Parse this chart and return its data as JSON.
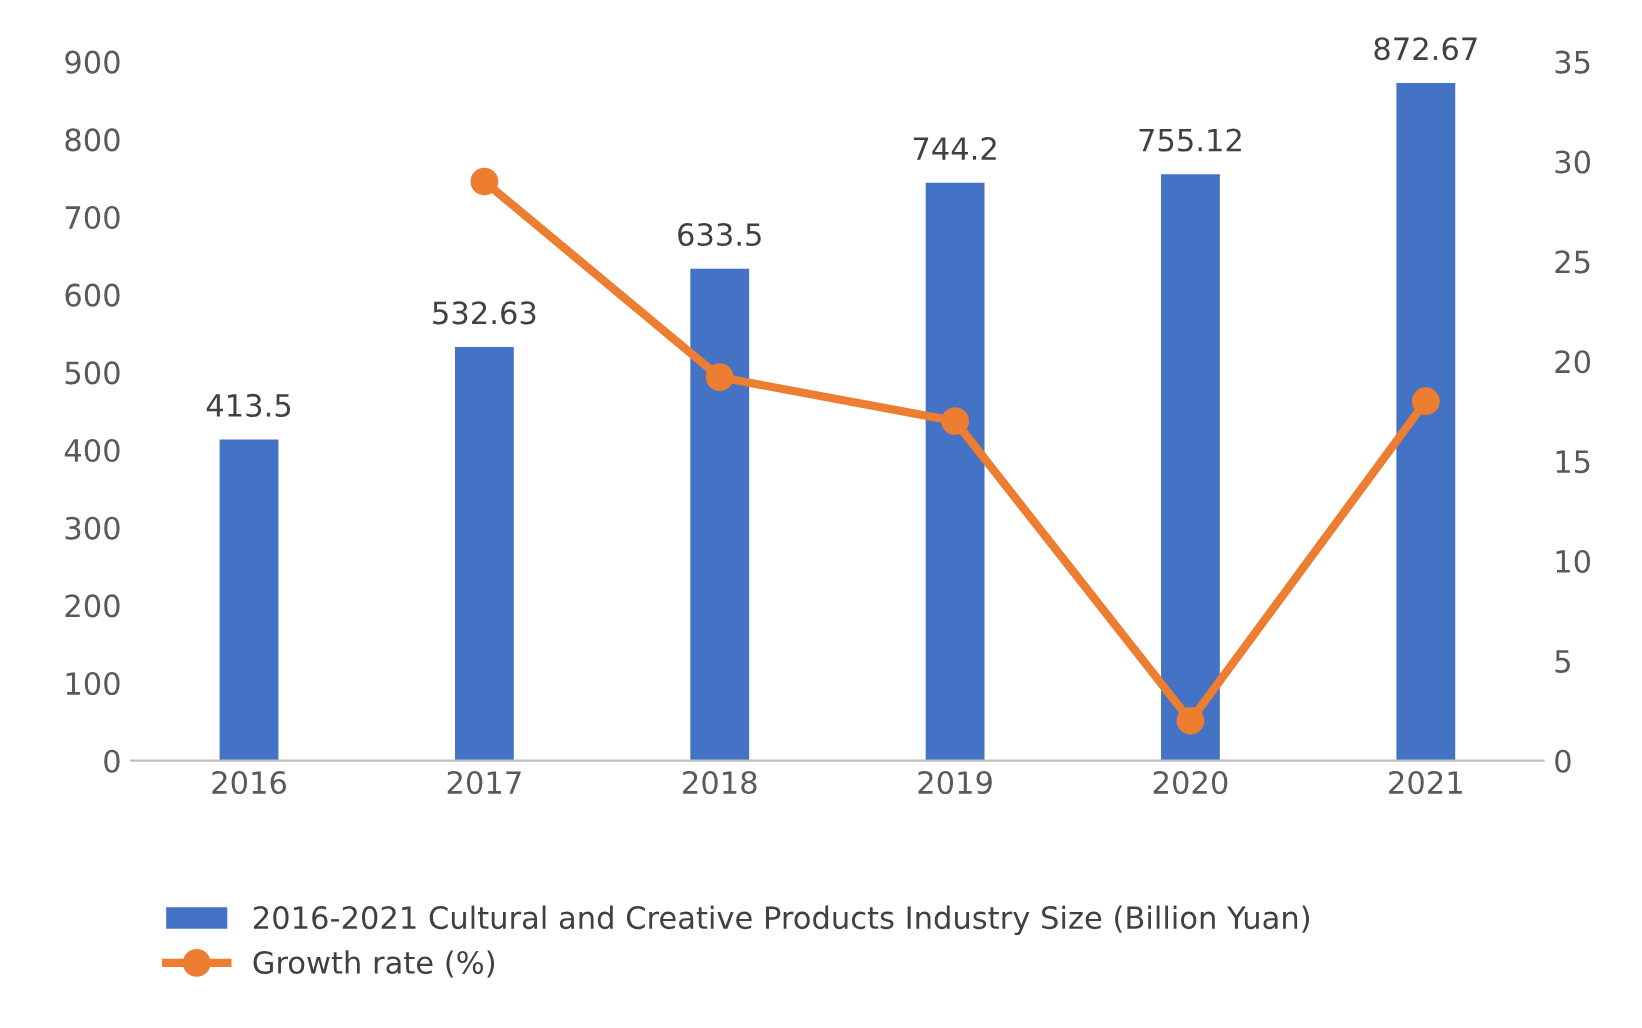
{
  "chart_data": {
    "type": "bar",
    "categories": [
      "2016",
      "2017",
      "2018",
      "2019",
      "2020",
      "2021"
    ],
    "series": [
      {
        "name": "2016-2021 Cultural and Creative Products Industry Size (Billion Yuan)",
        "color": "#4472c4",
        "values": [
          413.5,
          532.63,
          633.5,
          744.2,
          755.12,
          872.67
        ],
        "value_labels": [
          "413.5",
          "532.63",
          "633.5",
          "744.2",
          "755.12",
          "872.67"
        ]
      },
      {
        "name": "Growth rate (%)",
        "color": "#ed7d31",
        "type": "line",
        "axis": "y2",
        "marker": "circle",
        "values": [
          null,
          29,
          19.2,
          17,
          2,
          18
        ]
      }
    ],
    "ylim": [
      0,
      900
    ],
    "yticks": [
      0,
      100,
      200,
      300,
      400,
      500,
      600,
      700,
      800,
      900
    ],
    "y2lim": [
      0,
      35
    ],
    "y2ticks": [
      0,
      5,
      10,
      15,
      20,
      25,
      30,
      35
    ],
    "legend": "bottom",
    "grid": false
  }
}
